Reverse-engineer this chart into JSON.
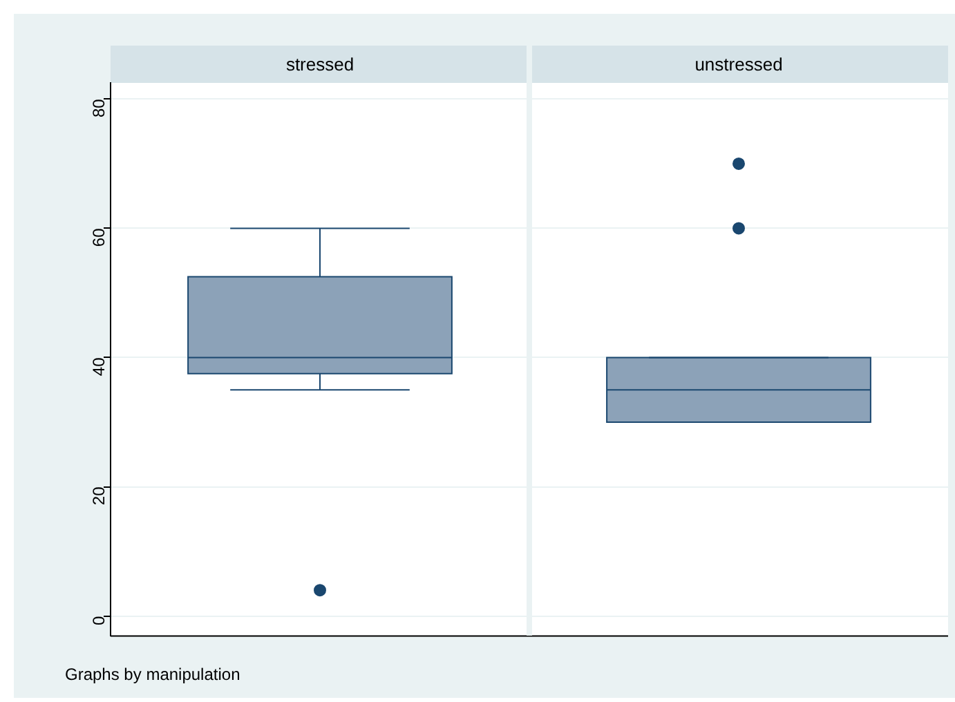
{
  "chart_data": {
    "type": "box",
    "categories": [
      "stressed",
      "unstressed"
    ],
    "color": "#8ca2b8",
    "marker": "circle",
    "boxes": [
      {
        "low": 35,
        "q1": 37.5,
        "median": 40,
        "q3": 52.5,
        "high": 60,
        "outliers": [
          4
        ]
      },
      {
        "low": 30,
        "q1": 30,
        "median": 35,
        "q3": 40,
        "high": 40,
        "outliers": [
          60,
          70
        ]
      }
    ],
    "ylim": [
      -3,
      82.5
    ],
    "yticks": [
      0,
      20,
      40,
      60,
      80
    ],
    "grid": "y",
    "annotations": [
      "Graphs by manipulation"
    ]
  }
}
